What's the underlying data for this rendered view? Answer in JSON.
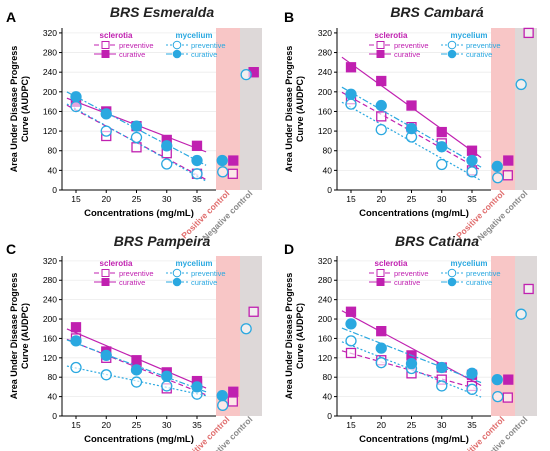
{
  "figure": {
    "y_ticks": [
      "0",
      "40",
      "80",
      "120",
      "160",
      "200",
      "240",
      "280",
      "320"
    ],
    "x_ticks": [
      "15",
      "20",
      "25",
      "30",
      "35"
    ],
    "positive_control_label": "Positive control",
    "negative_control_label": "Negative control",
    "legend": {
      "sclerotia_title": "sclerotia",
      "mycelium_title": "mycelium",
      "preventive": "preventive",
      "curative": "curative"
    }
  },
  "colors": {
    "sclerotia": "#c020b0",
    "mycelium": "#2aa8e0",
    "positive_band": "#f8c6c6",
    "negative_band": "#ddd8d8",
    "positive_text": "#e06d6d",
    "negative_text": "#8a8a8a"
  },
  "chart_data": [
    {
      "panel": "A",
      "title": "BRS Esmeralda",
      "type": "scatter",
      "xlabel": "Concentrations (mg/mL)",
      "ylabel": "Area Under Disease Progress Curve (AUDPC)",
      "ylim": [
        0,
        330
      ],
      "x": [
        15,
        20,
        25,
        30,
        35
      ],
      "series": [
        {
          "name": "sclerotia preventive",
          "values": [
            180,
            110,
            87,
            75,
            33
          ]
        },
        {
          "name": "sclerotia curative",
          "values": [
            180,
            160,
            130,
            102,
            90
          ]
        },
        {
          "name": "mycelium preventive",
          "values": [
            170,
            120,
            107,
            53,
            33
          ]
        },
        {
          "name": "mycelium curative",
          "values": [
            190,
            155,
            130,
            90,
            60
          ]
        }
      ],
      "positive_control": {
        "sclerotia_preventive": 33,
        "sclerotia_curative": 60,
        "mycelium_preventive": 37,
        "mycelium_curative": 60
      },
      "negative_control": {
        "sclerotia_preventive": 240,
        "sclerotia_curative": 240,
        "mycelium_preventive": 235
      }
    },
    {
      "panel": "B",
      "title": "BRS Cambará",
      "type": "scatter",
      "xlabel": "Concentrations (mg/mL)",
      "ylabel": "Area Under Disease Progress Curve (AUDPC)",
      "ylim": [
        0,
        330
      ],
      "x": [
        15,
        20,
        25,
        30,
        35
      ],
      "series": [
        {
          "name": "sclerotia preventive",
          "values": [
            185,
            150,
            128,
            95,
            40
          ]
        },
        {
          "name": "sclerotia curative",
          "values": [
            250,
            222,
            172,
            118,
            80
          ]
        },
        {
          "name": "mycelium preventive",
          "values": [
            175,
            123,
            108,
            52,
            37
          ]
        },
        {
          "name": "mycelium curative",
          "values": [
            195,
            172,
            125,
            88,
            60
          ]
        }
      ],
      "positive_control": {
        "sclerotia_preventive": 30,
        "sclerotia_curative": 60,
        "mycelium_preventive": 25,
        "mycelium_curative": 48
      },
      "negative_control": {
        "sclerotia_preventive": 320,
        "mycelium_preventive": 215
      }
    },
    {
      "panel": "C",
      "title": "BRS Pampeira",
      "type": "scatter",
      "xlabel": "Concentrations (mg/mL)",
      "ylabel": "Area Under Disease Progress Curve (AUDPC)",
      "ylim": [
        0,
        330
      ],
      "x": [
        15,
        20,
        25,
        30,
        35
      ],
      "series": [
        {
          "name": "sclerotia preventive",
          "values": [
            160,
            120,
            100,
            57,
            67
          ]
        },
        {
          "name": "sclerotia curative",
          "values": [
            183,
            133,
            115,
            90,
            72
          ]
        },
        {
          "name": "mycelium preventive",
          "values": [
            100,
            85,
            70,
            62,
            45
          ]
        },
        {
          "name": "mycelium curative",
          "values": [
            155,
            125,
            95,
            82,
            60
          ]
        }
      ],
      "positive_control": {
        "sclerotia_preventive": 30,
        "sclerotia_curative": 50,
        "mycelium_preventive": 22,
        "mycelium_curative": 42
      },
      "negative_control": {
        "sclerotia_preventive": 215,
        "mycelium_preventive": 180
      }
    },
    {
      "panel": "D",
      "title": "BRS Catiana",
      "type": "scatter",
      "xlabel": "Concentrations (mg/mL)",
      "ylabel": "Area Under Disease Progress Curve (AUDPC)",
      "ylim": [
        0,
        330
      ],
      "x": [
        15,
        20,
        25,
        30,
        35
      ],
      "series": [
        {
          "name": "sclerotia preventive",
          "values": [
            130,
            115,
            88,
            75,
            62
          ]
        },
        {
          "name": "sclerotia curative",
          "values": [
            215,
            175,
            125,
            100,
            85
          ]
        },
        {
          "name": "mycelium preventive",
          "values": [
            155,
            110,
            98,
            62,
            55
          ]
        },
        {
          "name": "mycelium curative",
          "values": [
            190,
            140,
            108,
            100,
            88
          ]
        }
      ],
      "positive_control": {
        "sclerotia_preventive": 38,
        "sclerotia_curative": 75,
        "mycelium_preventive": 40,
        "mycelium_curative": 75
      },
      "negative_control": {
        "sclerotia_preventive": 262,
        "mycelium_preventive": 210
      }
    }
  ]
}
